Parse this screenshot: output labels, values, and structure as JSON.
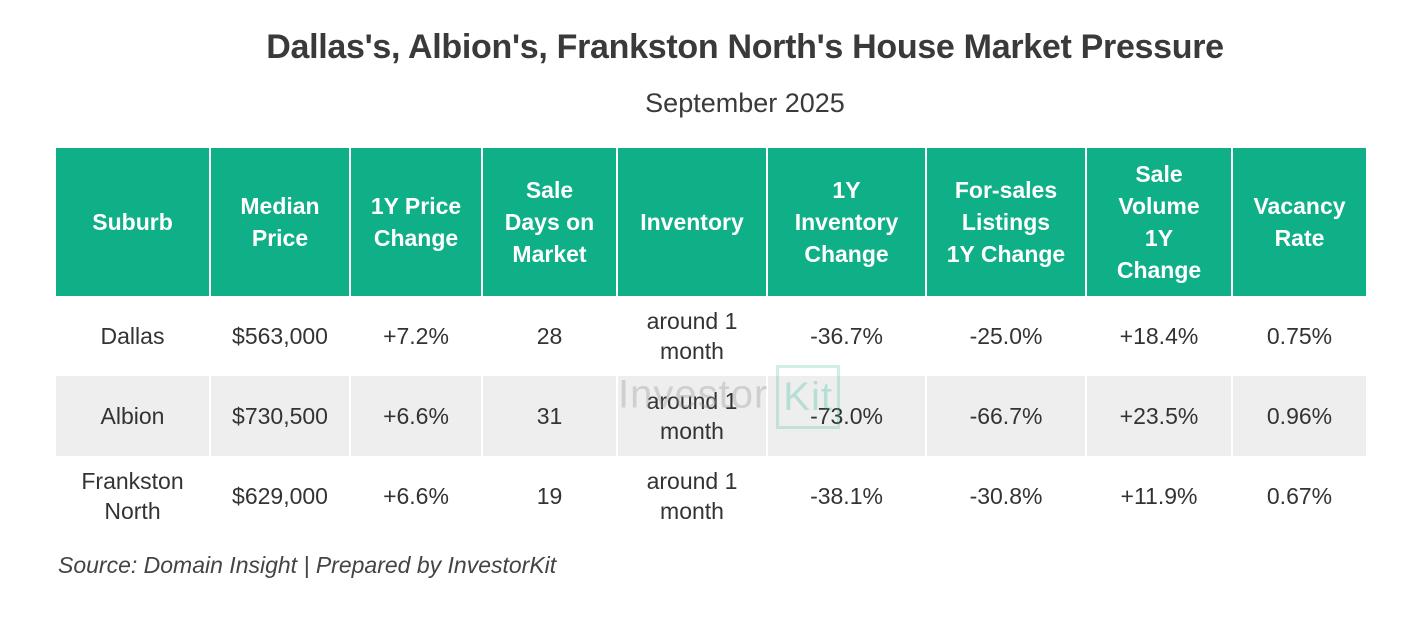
{
  "chart_data": {
    "type": "table",
    "title": "Dallas's, Albion's, Frankston North's House Market Pressure",
    "subtitle": "September 2025",
    "columns": [
      "Suburb",
      "Median Price",
      "1Y Price Change",
      "Sale Days on Market",
      "Inventory",
      "1Y Inventory Change",
      "For-sales Listings 1Y Change",
      "Sale Volume 1Y Change",
      "Vacancy Rate"
    ],
    "rows": [
      [
        "Dallas",
        "$563,000",
        "+7.2%",
        "28",
        "around 1 month",
        "-36.7%",
        "-25.0%",
        "+18.4%",
        "0.75%"
      ],
      [
        "Albion",
        "$730,500",
        "+6.6%",
        "31",
        "around 1 month",
        "-73.0%",
        "-66.7%",
        "+23.5%",
        "0.96%"
      ],
      [
        "Frankston North",
        "$629,000",
        "+6.6%",
        "19",
        "around 1 month",
        "-38.1%",
        "-30.8%",
        "+11.9%",
        "0.67%"
      ]
    ],
    "source": "Source: Domain Insight | Prepared by InvestorKit"
  },
  "watermark": {
    "part1": "Investor",
    "part2": "Kit"
  },
  "colors": {
    "header": "#0faf87",
    "alt_row": "#eeeeee"
  }
}
